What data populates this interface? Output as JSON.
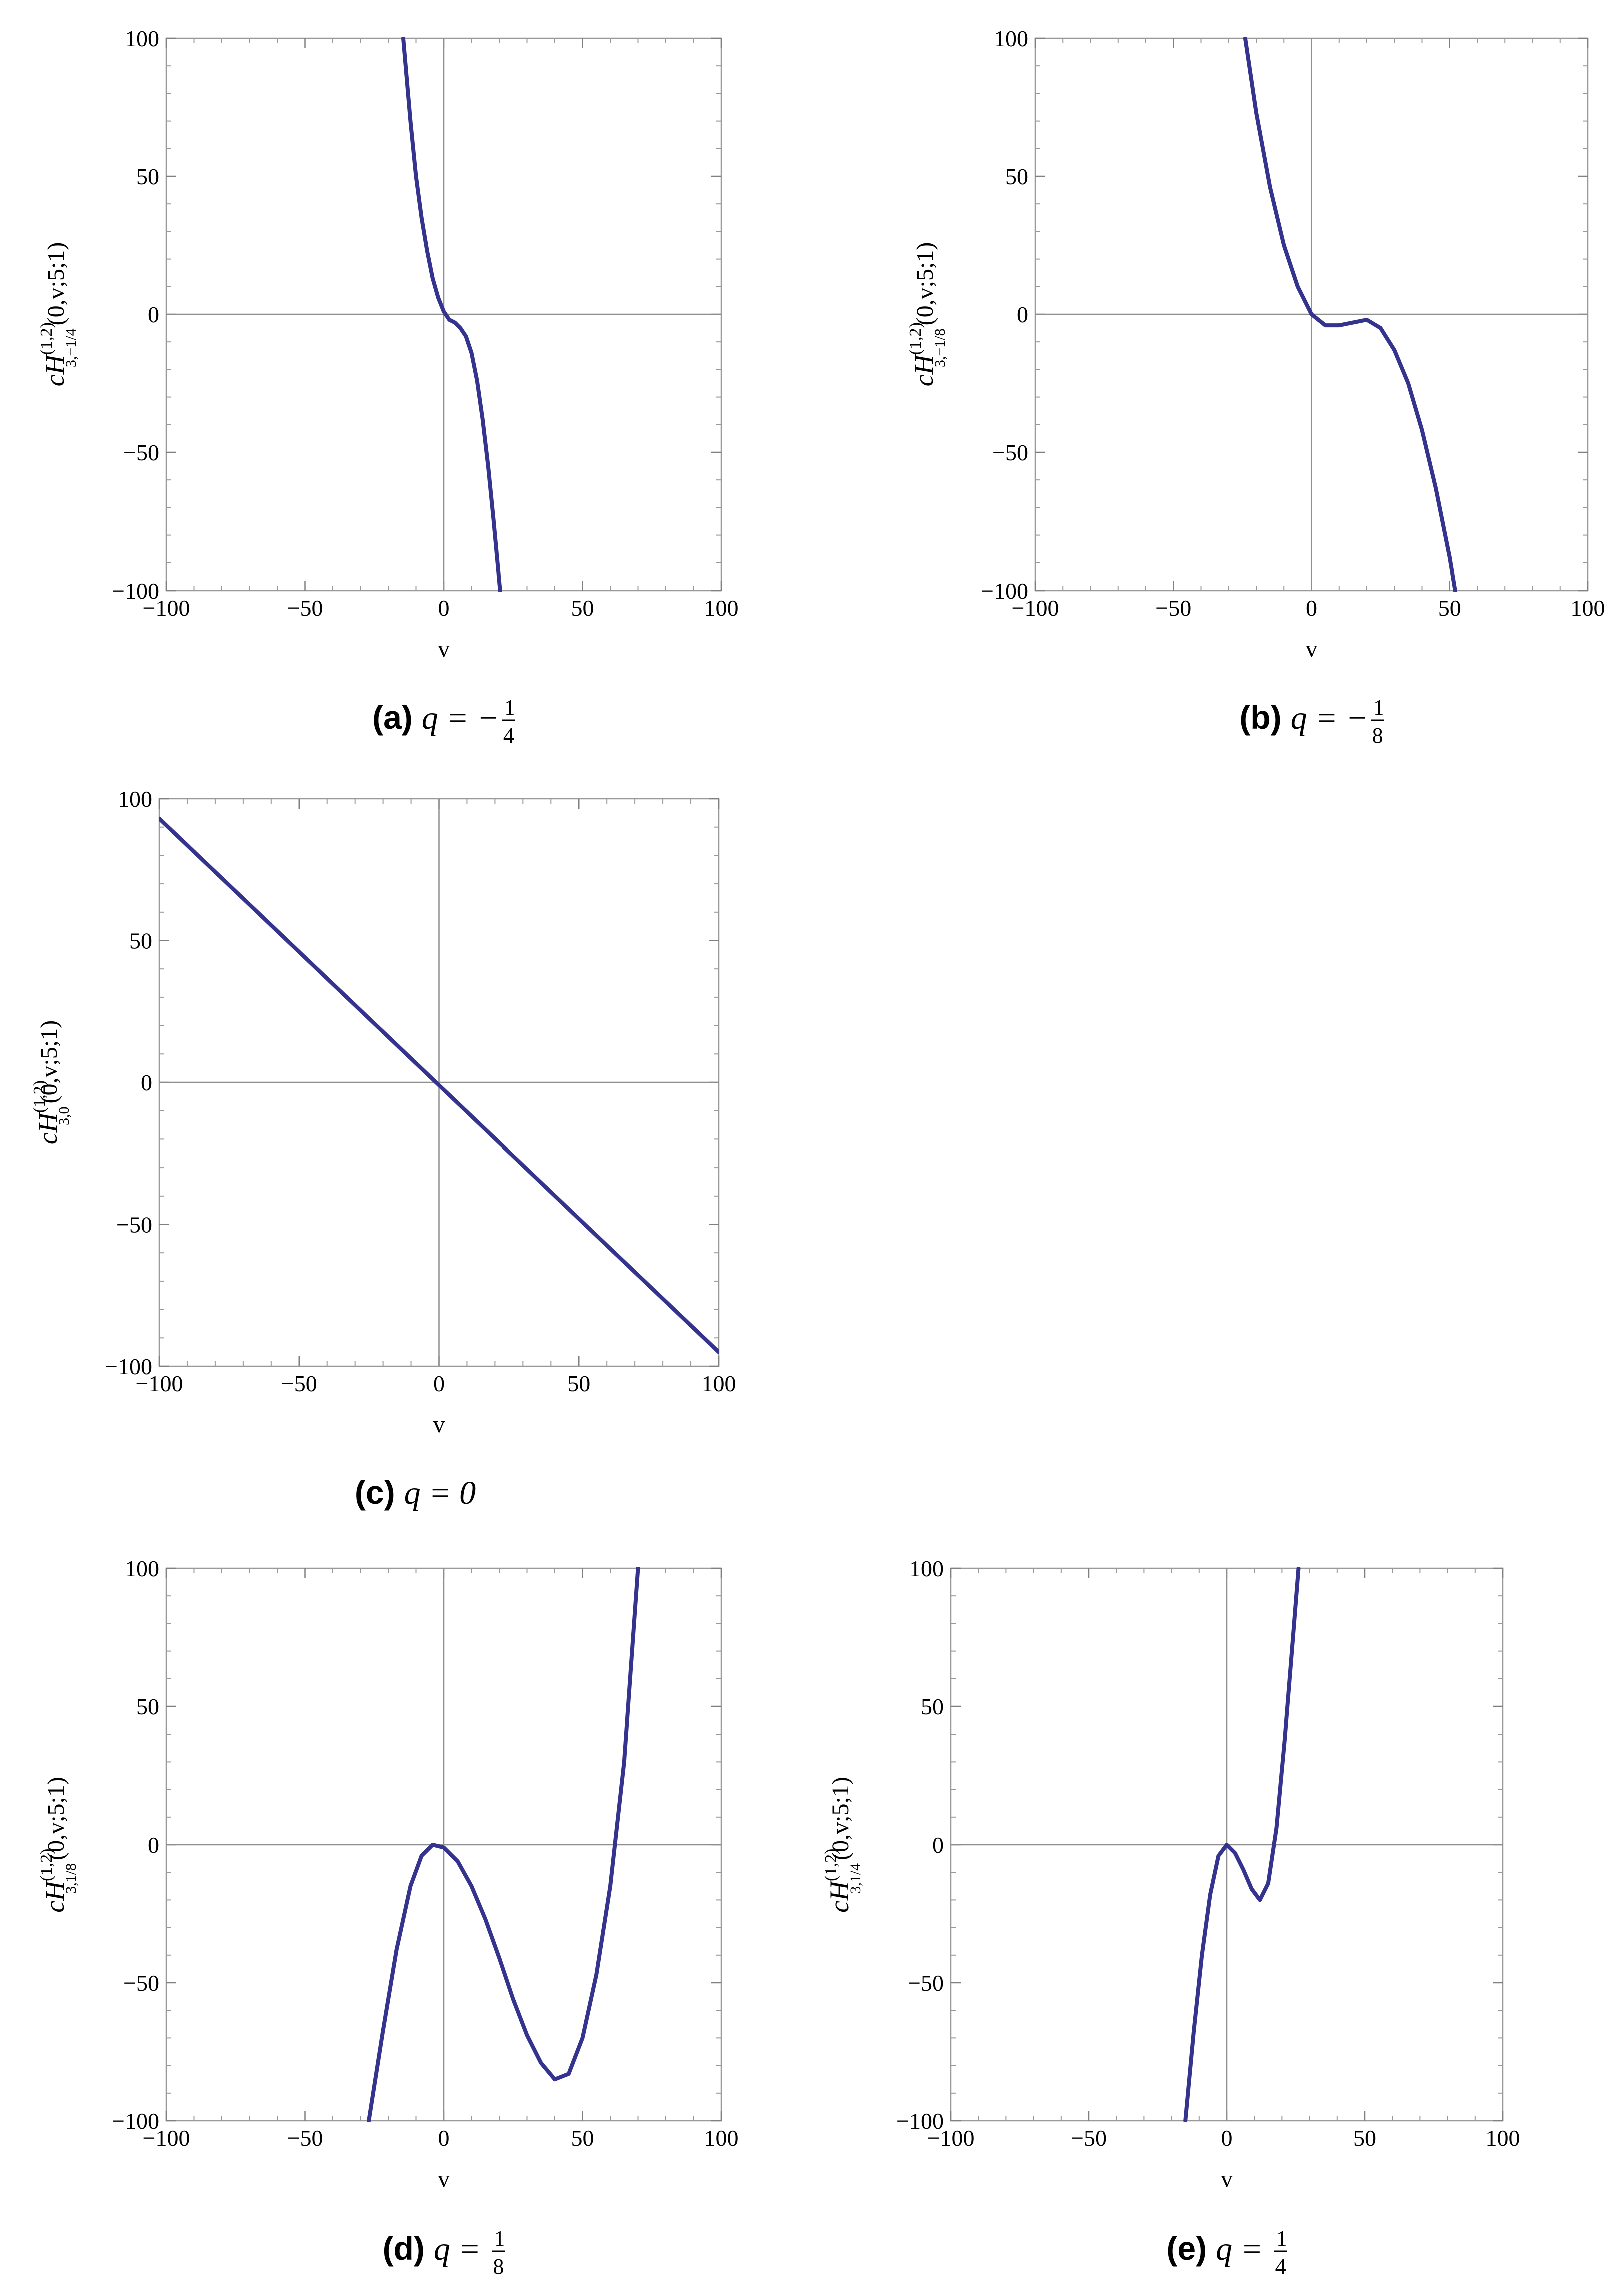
{
  "figure": {
    "captions": [
      {
        "letter": "(a)",
        "eq": "q = −",
        "num": "1",
        "den": "4"
      },
      {
        "letter": "(b)",
        "eq": "q = −",
        "num": "1",
        "den": "8"
      },
      {
        "letter": "(c)",
        "eq": "q = 0",
        "num": "",
        "den": ""
      },
      {
        "letter": "(d)",
        "eq": "q = ",
        "num": "1",
        "den": "8"
      },
      {
        "letter": "(e)",
        "eq": "q = ",
        "num": "1",
        "den": "4"
      }
    ]
  },
  "chart_data": [
    {
      "type": "line",
      "xlabel": "v",
      "ylabel": {
        "base": "cH",
        "sup": "(1,2)",
        "sub": "3,−1/4",
        "arg": "(0,v;5;1)"
      },
      "xlim": [
        -100,
        100
      ],
      "ylim": [
        -100,
        100
      ],
      "xticks": [
        -100,
        -50,
        0,
        50,
        100
      ],
      "yticks": [
        -100,
        -50,
        0,
        50,
        100
      ],
      "series": [
        {
          "color": "#34348f",
          "x": [
            -14.6,
            -12,
            -10,
            -8,
            -6,
            -4,
            -2,
            0,
            2,
            4,
            6,
            8,
            10,
            12,
            14,
            16,
            18,
            20.3
          ],
          "y": [
            100,
            70,
            50,
            35,
            23,
            13,
            6,
            1,
            -2,
            -3,
            -5,
            -8,
            -14,
            -24,
            -38,
            -55,
            -75,
            -100
          ]
        }
      ]
    },
    {
      "type": "line",
      "xlabel": "v",
      "ylabel": {
        "base": "cH",
        "sup": "(1,2)",
        "sub": "3,−1/8",
        "arg": "(0,v;5;1)"
      },
      "xlim": [
        -100,
        100
      ],
      "ylim": [
        -100,
        100
      ],
      "xticks": [
        -100,
        -50,
        0,
        50,
        100
      ],
      "yticks": [
        -100,
        -50,
        0,
        50,
        100
      ],
      "series": [
        {
          "color": "#34348f",
          "x": [
            -24,
            -20,
            -15,
            -10,
            -5,
            0,
            5,
            10,
            15,
            20,
            25,
            30,
            35,
            40,
            45,
            50,
            52
          ],
          "y": [
            100,
            73,
            46,
            25,
            10,
            0,
            -4,
            -4,
            -3,
            -2,
            -5,
            -13,
            -25,
            -42,
            -63,
            -88,
            -100
          ]
        }
      ]
    },
    {
      "type": "line",
      "xlabel": "v",
      "ylabel": {
        "base": "cH",
        "sup": "(1,2)",
        "sub": "3,0",
        "arg": "(0,v;5;1)"
      },
      "xlim": [
        -100,
        100
      ],
      "ylim": [
        -100,
        100
      ],
      "xticks": [
        -100,
        -50,
        0,
        50,
        100
      ],
      "yticks": [
        -100,
        -50,
        0,
        50,
        100
      ],
      "series": [
        {
          "color": "#34348f",
          "x": [
            -100,
            100
          ],
          "y": [
            93,
            -95
          ]
        }
      ]
    },
    {
      "type": "line",
      "xlabel": "v",
      "ylabel": {
        "base": "cH",
        "sup": "(1,2)",
        "sub": "3,1/8",
        "arg": "(0,v;5;1)"
      },
      "xlim": [
        -100,
        100
      ],
      "ylim": [
        -100,
        100
      ],
      "xticks": [
        -100,
        -50,
        0,
        50,
        100
      ],
      "yticks": [
        -100,
        -50,
        0,
        50,
        100
      ],
      "series": [
        {
          "color": "#34348f",
          "x": [
            -27,
            -22,
            -17,
            -12,
            -8,
            -4,
            0,
            5,
            10,
            15,
            20,
            25,
            30,
            35,
            40,
            45,
            50,
            55,
            60,
            65,
            70
          ],
          "y": [
            -100,
            -68,
            -38,
            -15,
            -4,
            0,
            -1,
            -6,
            -15,
            -27,
            -41,
            -56,
            -69,
            -79,
            -85,
            -83,
            -70,
            -47,
            -15,
            30,
            100
          ]
        }
      ]
    },
    {
      "type": "line",
      "xlabel": "v",
      "ylabel": {
        "base": "cH",
        "sup": "(1,2)",
        "sub": "3,1/4",
        "arg": "(0,v;5;1)"
      },
      "xlim": [
        -100,
        100
      ],
      "ylim": [
        -100,
        100
      ],
      "xticks": [
        -100,
        -50,
        0,
        50,
        100
      ],
      "yticks": [
        -100,
        -50,
        0,
        50,
        100
      ],
      "series": [
        {
          "color": "#34348f",
          "x": [
            -15,
            -12,
            -9,
            -6,
            -3,
            0,
            3,
            6,
            9,
            12,
            15,
            18,
            21,
            24,
            26
          ],
          "y": [
            -100,
            -68,
            -40,
            -18,
            -4,
            0,
            -3,
            -9,
            -16,
            -20,
            -14,
            6,
            38,
            75,
            100
          ]
        }
      ]
    }
  ]
}
